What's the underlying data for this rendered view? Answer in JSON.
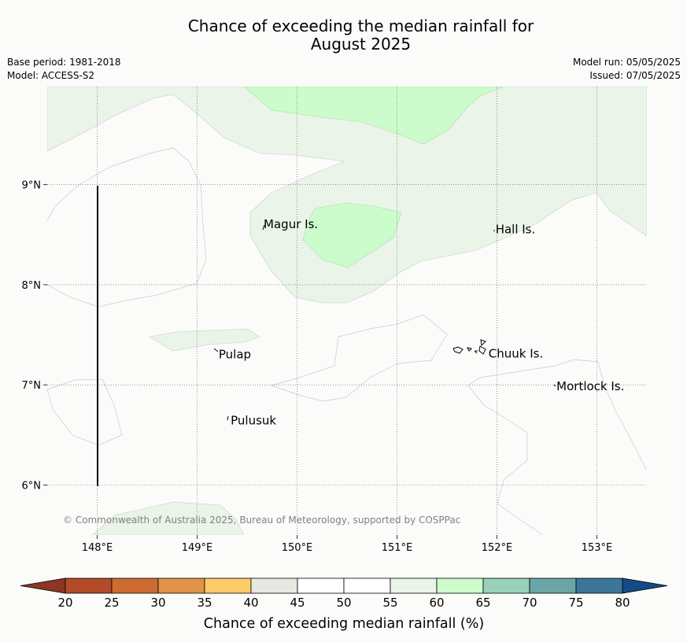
{
  "title_line1": "Chance of exceeding the median rainfall for",
  "title_line2": "August 2025",
  "base_period": "Base period: 1981-2018",
  "model": "Model: ACCESS-S2",
  "model_run": "Model run: 05/05/2025",
  "issued": "Issued: 07/05/2025",
  "copyright": "© Commonwealth of Australia 2025, Bureau of Meteorology, supported by COSPPac",
  "map": {
    "lon_range": [
      147.5,
      153.5
    ],
    "lat_range": [
      5.5,
      9.98
    ],
    "lon_ticks": [
      {
        "value": 148,
        "label": "148°E"
      },
      {
        "value": 149,
        "label": "149°E"
      },
      {
        "value": 150,
        "label": "150°E"
      },
      {
        "value": 151,
        "label": "151°E"
      },
      {
        "value": 152,
        "label": "152°E"
      },
      {
        "value": 153,
        "label": "153°E"
      }
    ],
    "lat_ticks": [
      {
        "value": 9,
        "label": "9°N"
      },
      {
        "value": 8,
        "label": "8°N"
      },
      {
        "value": 7,
        "label": "7°N"
      },
      {
        "value": 6,
        "label": "6°N"
      }
    ],
    "places": [
      {
        "name": "Magur Is.",
        "lon": 149.65,
        "lat": 8.58
      },
      {
        "name": "Hall Is.",
        "lon": 151.97,
        "lat": 8.53
      },
      {
        "name": "Pulap",
        "lon": 149.2,
        "lat": 7.28
      },
      {
        "name": "Chuuk Is.",
        "lon": 151.9,
        "lat": 7.29
      },
      {
        "name": "Mortlock Is.",
        "lon": 152.58,
        "lat": 6.96
      },
      {
        "name": "Pulusuk",
        "lon": 149.32,
        "lat": 6.62
      }
    ]
  },
  "colorbar": {
    "title": "Chance of exceeding median rainfall (%)",
    "ticks": [
      "20",
      "25",
      "30",
      "35",
      "40",
      "45",
      "50",
      "55",
      "60",
      "65",
      "70",
      "75",
      "80"
    ],
    "colors": [
      "#b24a27",
      "#cd6b33",
      "#e1934a",
      "#fdcb67",
      "#e8e8e3",
      "#ffffff",
      "#ffffff",
      "#eaf4e8",
      "#ccfccc",
      "#9ad0b9",
      "#6ca5a5",
      "#3d7597"
    ],
    "under_color": "#8c3623",
    "over_color": "#134b87"
  }
}
